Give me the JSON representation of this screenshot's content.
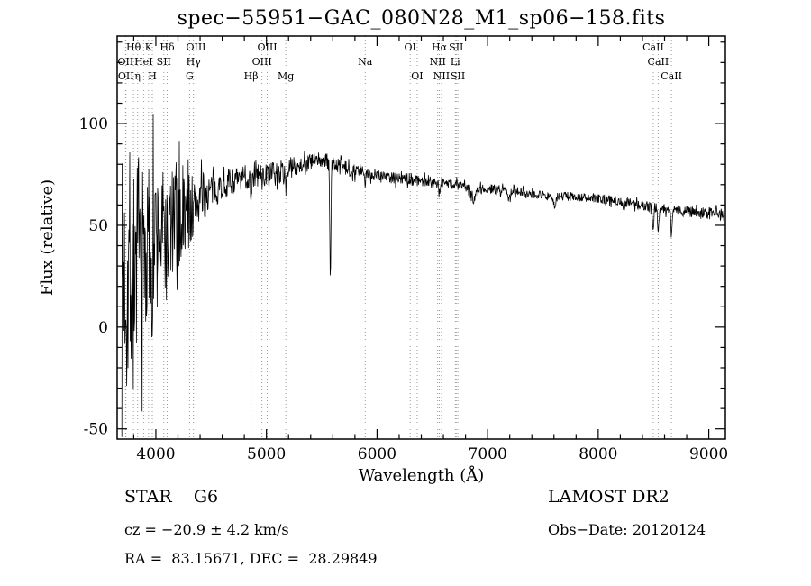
{
  "title": "spec−55951−GAC_080N28_M1_sp06−158.fits",
  "footer": {
    "star_class": "STAR    G6",
    "survey": "LAMOST DR2",
    "cz": "cz = −20.9 ± 4.2 km/s",
    "obs_date": "Obs−Date: 20120124",
    "ra_dec": "RA =  83.15671, DEC =  28.29849"
  },
  "chart_data": {
    "type": "line",
    "title": "spec−55951−GAC_080N28_M1_sp06−158.fits",
    "xlabel": "Wavelength (Å)",
    "ylabel": "Flux (relative)",
    "xlim": [
      3650,
      9150
    ],
    "ylim": [
      -55,
      143
    ],
    "xticks": [
      4000,
      5000,
      6000,
      7000,
      8000,
      9000
    ],
    "yticks": [
      -50,
      0,
      50,
      100
    ],
    "x_minor_step": 200,
    "y_minor_step": 10,
    "grid": false,
    "line_color": "#000000",
    "marker_line_color": "#9a9a9a",
    "spectral_lines": [
      {
        "label": "Hθ",
        "wavelength": 3798,
        "row": 1
      },
      {
        "label": "K",
        "wavelength": 3934,
        "row": 1
      },
      {
        "label": "Hδ",
        "wavelength": 4102,
        "row": 1
      },
      {
        "label": "OIII",
        "wavelength": 4363,
        "row": 1
      },
      {
        "label": "OIII",
        "wavelength": 5007,
        "row": 1
      },
      {
        "label": "OI",
        "wavelength": 6300,
        "row": 1
      },
      {
        "label": "Hα",
        "wavelength": 6563,
        "row": 1
      },
      {
        "label": "SII",
        "wavelength": 6716,
        "row": 1
      },
      {
        "label": "CaII",
        "wavelength": 8498,
        "row": 1
      },
      {
        "label": "OII",
        "wavelength": 3726,
        "row": 2
      },
      {
        "label": "HeI",
        "wavelength": 3889,
        "row": 2
      },
      {
        "label": "SII",
        "wavelength": 4072,
        "row": 2
      },
      {
        "label": "Hγ",
        "wavelength": 4340,
        "row": 2
      },
      {
        "label": "OIII",
        "wavelength": 4959,
        "row": 2
      },
      {
        "label": "Na",
        "wavelength": 5893,
        "row": 2
      },
      {
        "label": "NII",
        "wavelength": 6548,
        "row": 2
      },
      {
        "label": "Li",
        "wavelength": 6708,
        "row": 2
      },
      {
        "label": "CaII",
        "wavelength": 8542,
        "row": 2
      },
      {
        "label": "OII",
        "wavelength": 3729,
        "row": 3
      },
      {
        "label": "η",
        "wavelength": 3835,
        "row": 3
      },
      {
        "label": "H",
        "wavelength": 3968,
        "row": 3
      },
      {
        "label": "G",
        "wavelength": 4305,
        "row": 3
      },
      {
        "label": "Hβ",
        "wavelength": 4861,
        "row": 3
      },
      {
        "label": "Mg",
        "wavelength": 5175,
        "row": 3
      },
      {
        "label": "OI",
        "wavelength": 6363,
        "row": 3
      },
      {
        "label": "NII",
        "wavelength": 6583,
        "row": 3
      },
      {
        "label": "SII",
        "wavelength": 6731,
        "row": 3
      },
      {
        "label": "CaII",
        "wavelength": 8662,
        "row": 3
      }
    ],
    "continuum": [
      [
        3692,
        25
      ],
      [
        3800,
        30
      ],
      [
        3900,
        35
      ],
      [
        4000,
        42
      ],
      [
        4100,
        48
      ],
      [
        4200,
        52
      ],
      [
        4300,
        58
      ],
      [
        4400,
        63
      ],
      [
        4500,
        67
      ],
      [
        4600,
        70
      ],
      [
        4700,
        72
      ],
      [
        4800,
        73
      ],
      [
        4900,
        74
      ],
      [
        5000,
        75
      ],
      [
        5100,
        76
      ],
      [
        5200,
        78
      ],
      [
        5300,
        80
      ],
      [
        5400,
        81
      ],
      [
        5500,
        82
      ],
      [
        5600,
        80
      ],
      [
        5700,
        78
      ],
      [
        5800,
        77
      ],
      [
        5900,
        76
      ],
      [
        6000,
        75
      ],
      [
        6100,
        74
      ],
      [
        6200,
        73
      ],
      [
        6400,
        72
      ],
      [
        6600,
        71
      ],
      [
        6800,
        69
      ],
      [
        7000,
        68
      ],
      [
        7200,
        67
      ],
      [
        7500,
        65
      ],
      [
        7800,
        64
      ],
      [
        8000,
        63
      ],
      [
        8200,
        62
      ],
      [
        8400,
        60
      ],
      [
        8600,
        58
      ],
      [
        8800,
        57
      ],
      [
        9000,
        56
      ],
      [
        9140,
        55
      ]
    ],
    "noise_envelope": [
      [
        3692,
        58
      ],
      [
        3750,
        56
      ],
      [
        3800,
        52
      ],
      [
        3850,
        50
      ],
      [
        3900,
        46
      ],
      [
        3950,
        43
      ],
      [
        4000,
        40
      ],
      [
        4050,
        36
      ],
      [
        4100,
        33
      ],
      [
        4150,
        29
      ],
      [
        4200,
        26
      ],
      [
        4250,
        23
      ],
      [
        4300,
        20
      ],
      [
        4350,
        17
      ],
      [
        4400,
        13
      ],
      [
        4500,
        9
      ],
      [
        4600,
        7.5
      ],
      [
        4700,
        6.5
      ],
      [
        4800,
        6
      ],
      [
        5000,
        5.5
      ],
      [
        5300,
        5
      ],
      [
        5600,
        4
      ],
      [
        6000,
        3.2
      ],
      [
        6500,
        2.8
      ],
      [
        7000,
        2.4
      ],
      [
        7500,
        2.2
      ],
      [
        8000,
        2.2
      ],
      [
        8500,
        2.6
      ],
      [
        9000,
        3
      ],
      [
        9140,
        3
      ]
    ],
    "absorption_features": [
      {
        "wavelength": 4102,
        "depth": 12,
        "width": 5
      },
      {
        "wavelength": 4340,
        "depth": 10,
        "width": 5
      },
      {
        "wavelength": 4861,
        "depth": 9,
        "width": 5
      },
      {
        "wavelength": 5175,
        "depth": 6,
        "width": 10
      },
      {
        "wavelength": 5578,
        "depth": 58,
        "width": 5
      },
      {
        "wavelength": 5893,
        "depth": 9,
        "width": 5
      },
      {
        "wavelength": 6563,
        "depth": 7,
        "width": 5
      },
      {
        "wavelength": 6867,
        "depth": 6,
        "width": 20
      },
      {
        "wavelength": 7190,
        "depth": 3,
        "width": 15
      },
      {
        "wavelength": 7605,
        "depth": 5,
        "width": 15
      },
      {
        "wavelength": 8227,
        "depth": 3,
        "width": 10
      },
      {
        "wavelength": 8498,
        "depth": 12,
        "width": 5
      },
      {
        "wavelength": 8542,
        "depth": 14,
        "width": 5
      },
      {
        "wavelength": 8662,
        "depth": 13,
        "width": 5
      }
    ],
    "data_xstart": 3692,
    "data_xend": 9140,
    "sample_step": 4,
    "noise_seed": 7
  }
}
